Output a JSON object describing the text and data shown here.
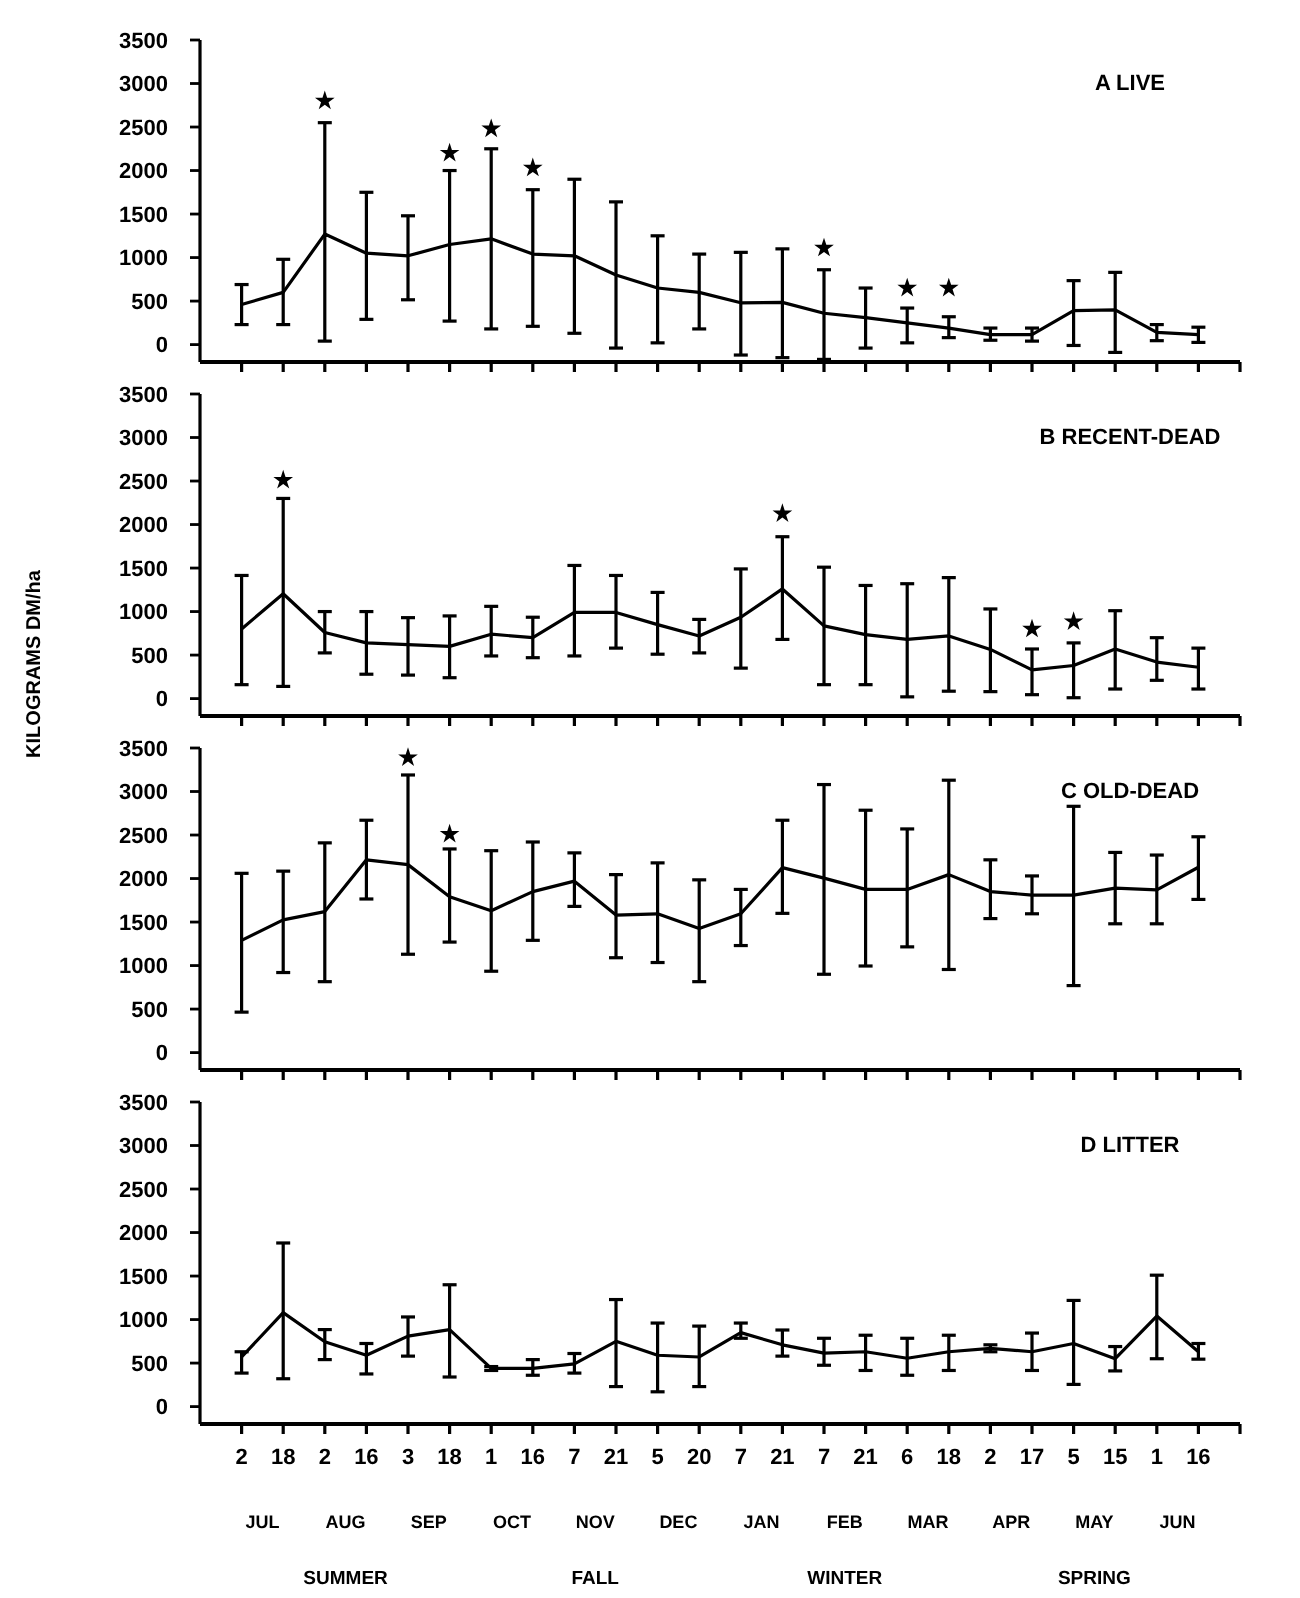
{
  "chart_data": [
    {
      "type": "line",
      "title": "A LIVE",
      "categories": [
        "2",
        "18",
        "2",
        "16",
        "3",
        "18",
        "1",
        "16",
        "7",
        "21",
        "5",
        "20",
        "7",
        "21",
        "7",
        "21",
        "6",
        "18",
        "2",
        "17",
        "5",
        "15",
        "1",
        "16"
      ],
      "ylim": [
        -200,
        3500
      ],
      "yticks": [
        0,
        500,
        1000,
        1500,
        2000,
        2500,
        3000,
        3500
      ],
      "tick_labels": "y",
      "line_style": "solid",
      "series": [
        {
          "color": "#000000",
          "marker": "none",
          "values": [
            460,
            600,
            1270,
            1050,
            1020,
            1150,
            1215,
            1040,
            1020,
            800,
            650,
            600,
            480,
            485,
            360,
            310,
            250,
            190,
            115,
            115,
            390,
            400,
            140,
            115
          ],
          "errors": [
            [
              230,
              690
            ],
            [
              230,
              980
            ],
            [
              40,
              2550
            ],
            [
              290,
              1750
            ],
            [
              515,
              1480
            ],
            [
              270,
              2000
            ],
            [
              180,
              2250
            ],
            [
              210,
              1780
            ],
            [
              130,
              1900
            ],
            [
              -40,
              1640
            ],
            [
              20,
              1250
            ],
            [
              180,
              1040
            ],
            [
              -120,
              1060
            ],
            [
              -150,
              1100
            ],
            [
              -170,
              860
            ],
            [
              -40,
              650
            ],
            [
              20,
              420
            ],
            [
              80,
              320
            ],
            [
              50,
              190
            ],
            [
              40,
              190
            ],
            [
              -10,
              735
            ],
            [
              -90,
              830
            ],
            [
              45,
              230
            ],
            [
              25,
              200
            ]
          ]
        },
        {
          "type": "scatter",
          "color": "#000000",
          "marker": "star",
          "values": [
            null,
            null,
            2800,
            null,
            null,
            2200,
            2480,
            2030,
            null,
            null,
            null,
            null,
            null,
            null,
            1110,
            null,
            650,
            650,
            null,
            null,
            null,
            null,
            null,
            null
          ]
        }
      ]
    },
    {
      "type": "line",
      "title": "B RECENT-DEAD",
      "ylabel": "KILOGRAMS DM/ha",
      "categories": [
        "2",
        "18",
        "2",
        "16",
        "3",
        "18",
        "1",
        "16",
        "7",
        "21",
        "5",
        "20",
        "7",
        "21",
        "7",
        "21",
        "6",
        "18",
        "2",
        "17",
        "5",
        "15",
        "1",
        "16"
      ],
      "ylim": [
        -200,
        3500
      ],
      "yticks": [
        0,
        500,
        1000,
        1500,
        2000,
        2500,
        3000,
        3500
      ],
      "tick_labels": "y",
      "line_style": "solid",
      "series": [
        {
          "color": "#000000",
          "marker": "none",
          "values": [
            800,
            1205,
            760,
            640,
            620,
            600,
            740,
            700,
            990,
            990,
            850,
            720,
            935,
            1260,
            835,
            735,
            680,
            720,
            565,
            330,
            380,
            570,
            420,
            360
          ],
          "errors": [
            [
              160,
              1415
            ],
            [
              140,
              2300
            ],
            [
              525,
              1000
            ],
            [
              280,
              1000
            ],
            [
              270,
              930
            ],
            [
              240,
              950
            ],
            [
              490,
              1060
            ],
            [
              470,
              935
            ],
            [
              490,
              1530
            ],
            [
              580,
              1415
            ],
            [
              510,
              1220
            ],
            [
              525,
              910
            ],
            [
              350,
              1490
            ],
            [
              680,
              1860
            ],
            [
              160,
              1510
            ],
            [
              160,
              1300
            ],
            [
              20,
              1320
            ],
            [
              85,
              1390
            ],
            [
              80,
              1030
            ],
            [
              45,
              570
            ],
            [
              10,
              640
            ],
            [
              110,
              1010
            ],
            [
              210,
              700
            ],
            [
              110,
              580
            ]
          ]
        },
        {
          "type": "scatter",
          "color": "#000000",
          "marker": "star",
          "values": [
            null,
            2510,
            null,
            null,
            null,
            null,
            null,
            null,
            null,
            null,
            null,
            null,
            null,
            2125,
            null,
            null,
            null,
            null,
            null,
            800,
            885,
            null,
            null,
            null
          ]
        }
      ]
    },
    {
      "type": "line",
      "title": "C OLD-DEAD",
      "categories": [
        "2",
        "18",
        "2",
        "16",
        "3",
        "18",
        "1",
        "16",
        "7",
        "21",
        "5",
        "20",
        "7",
        "21",
        "7",
        "21",
        "6",
        "18",
        "2",
        "17",
        "5",
        "15",
        "1",
        "16"
      ],
      "ylim": [
        -200,
        3500
      ],
      "yticks": [
        0,
        500,
        1000,
        1500,
        2000,
        2500,
        3000,
        3500
      ],
      "tick_labels": "y",
      "line_style": "solid",
      "series": [
        {
          "color": "#000000",
          "marker": "none",
          "values": [
            1290,
            1525,
            1620,
            2215,
            2160,
            1790,
            1630,
            1850,
            1970,
            1580,
            1595,
            1425,
            1595,
            2125,
            2005,
            1875,
            1875,
            2045,
            1850,
            1810,
            1810,
            1890,
            1870,
            2130
          ],
          "errors": [
            [
              465,
              2060
            ],
            [
              920,
              2085
            ],
            [
              815,
              2410
            ],
            [
              1765,
              2670
            ],
            [
              1130,
              3190
            ],
            [
              1270,
              2340
            ],
            [
              935,
              2320
            ],
            [
              1290,
              2420
            ],
            [
              1680,
              2295
            ],
            [
              1090,
              2045
            ],
            [
              1035,
              2180
            ],
            [
              815,
              1985
            ],
            [
              1230,
              1875
            ],
            [
              1600,
              2670
            ],
            [
              900,
              3080
            ],
            [
              995,
              2785
            ],
            [
              1215,
              2570
            ],
            [
              955,
              3130
            ],
            [
              1540,
              2215
            ],
            [
              1595,
              2030
            ],
            [
              770,
              2830
            ],
            [
              1480,
              2300
            ],
            [
              1480,
              2270
            ],
            [
              1760,
              2480
            ]
          ]
        },
        {
          "type": "scatter",
          "color": "#000000",
          "marker": "star",
          "values": [
            null,
            null,
            null,
            null,
            3390,
            2510,
            null,
            null,
            null,
            null,
            null,
            null,
            null,
            null,
            null,
            null,
            null,
            null,
            null,
            null,
            null,
            null,
            null,
            null
          ]
        }
      ]
    },
    {
      "type": "line",
      "title": "D LITTER",
      "categories": [
        "2",
        "18",
        "2",
        "16",
        "3",
        "18",
        "1",
        "16",
        "7",
        "21",
        "5",
        "20",
        "7",
        "21",
        "7",
        "21",
        "6",
        "18",
        "2",
        "17",
        "5",
        "15",
        "1",
        "16"
      ],
      "ylim": [
        -200,
        3500
      ],
      "yticks": [
        0,
        500,
        1000,
        1500,
        2000,
        2500,
        3000,
        3500
      ],
      "line_style": "solid",
      "annotations": [
        "JUL",
        "AUG",
        "SEP",
        "OCT",
        "NOV",
        "DEC",
        "JAN",
        "FEB",
        "MAR",
        "APR",
        "MAY",
        "JUN",
        "SUMMER",
        "FALL",
        "WINTER",
        "SPRING"
      ],
      "series": [
        {
          "color": "#000000",
          "marker": "none",
          "values": [
            570,
            1080,
            745,
            590,
            810,
            885,
            440,
            440,
            490,
            750,
            590,
            570,
            850,
            710,
            615,
            630,
            555,
            630,
            670,
            630,
            725,
            550,
            1040,
            630
          ],
          "errors": [
            [
              385,
              630
            ],
            [
              320,
              1880
            ],
            [
              540,
              885
            ],
            [
              375,
              725
            ],
            [
              580,
              1030
            ],
            [
              340,
              1400
            ],
            [
              415,
              460
            ],
            [
              360,
              540
            ],
            [
              385,
              610
            ],
            [
              230,
              1230
            ],
            [
              170,
              960
            ],
            [
              230,
              925
            ],
            [
              785,
              960
            ],
            [
              580,
              880
            ],
            [
              475,
              785
            ],
            [
              415,
              820
            ],
            [
              360,
              785
            ],
            [
              415,
              820
            ],
            [
              630,
              710
            ],
            [
              415,
              845
            ],
            [
              255,
              1220
            ],
            [
              410,
              690
            ],
            [
              550,
              1510
            ],
            [
              545,
              725
            ]
          ]
        }
      ]
    }
  ]
}
